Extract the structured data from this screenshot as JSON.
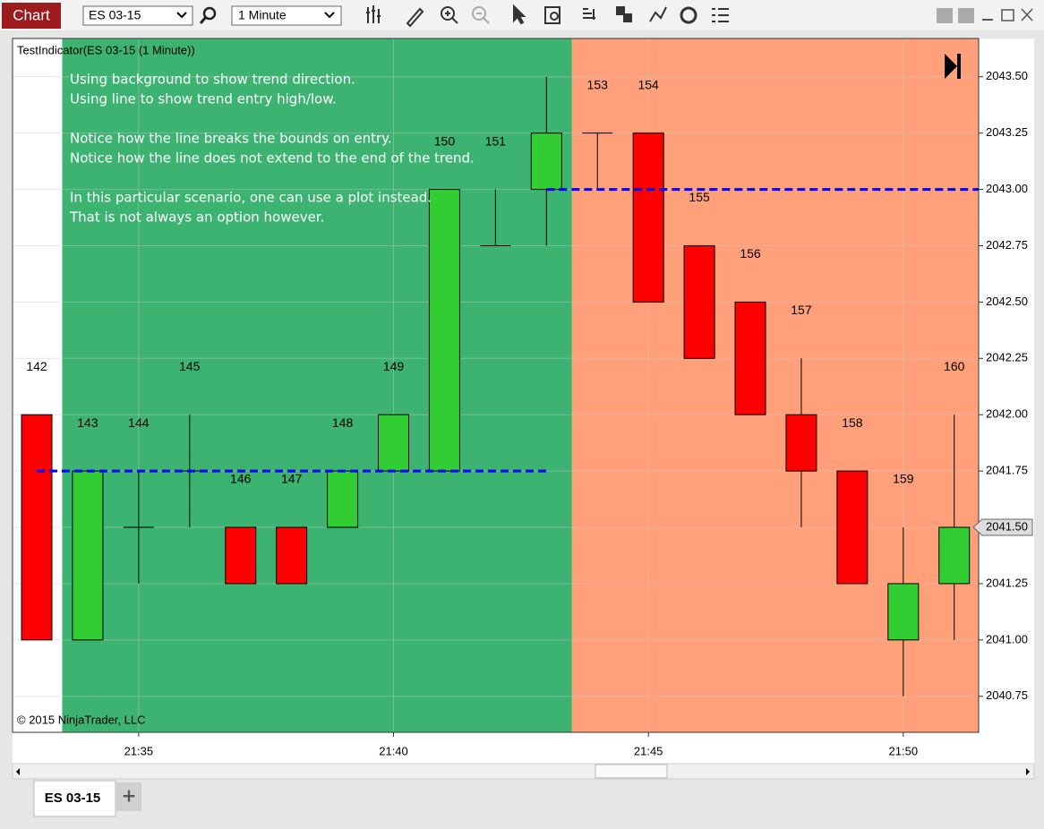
{
  "toolbar": {
    "app": "Chart",
    "instrument": "ES 03-15",
    "interval": "1 Minute"
  },
  "tabs": {
    "active": "ES 03-15",
    "add": "+"
  },
  "chart_data": {
    "type": "candlestick",
    "title": "TestIndicator(ES 03-15 (1 Minute))",
    "annotations": [
      [
        "Using background to show trend direction.",
        "Using line to show trend entry high/low."
      ],
      [
        "Notice how the line breaks the bounds on entry.",
        "Notice how the line does not extend to the end of the trend."
      ],
      [
        "In this particular scenario, one can use a plot instead.",
        "That is not always an option however."
      ]
    ],
    "copyright": "© 2015 NinjaTrader, LLC",
    "categories": [
      null,
      null,
      "21:35",
      null,
      null,
      null,
      null,
      "21:40",
      null,
      null,
      null,
      null,
      "21:45",
      null,
      null,
      null,
      null,
      "21:50",
      null
    ],
    "bar_numbers": [
      142,
      143,
      144,
      145,
      146,
      147,
      148,
      149,
      150,
      151,
      null,
      153,
      154,
      155,
      156,
      157,
      158,
      159,
      160
    ],
    "open": [
      2042.0,
      2041.0,
      2041.5,
      2041.75,
      2041.5,
      2041.5,
      2041.5,
      2041.75,
      2041.75,
      2042.75,
      2043.0,
      2043.25,
      2043.25,
      2042.75,
      2042.5,
      2042.0,
      2041.75,
      2041.0,
      2041.25
    ],
    "high": [
      2042.0,
      2041.75,
      2041.75,
      2042.0,
      2041.5,
      2041.5,
      2041.75,
      2042.0,
      2043.0,
      2043.0,
      2043.5,
      2043.25,
      2043.25,
      2042.75,
      2042.5,
      2042.25,
      2041.75,
      2041.5,
      2042.0
    ],
    "low": [
      2041.0,
      2041.0,
      2041.25,
      2041.5,
      2041.25,
      2041.25,
      2041.5,
      2041.75,
      2041.75,
      2042.75,
      2042.75,
      2043.0,
      2042.5,
      2042.25,
      2042.0,
      2041.5,
      2041.25,
      2040.75,
      2041.0
    ],
    "close": [
      2041.0,
      2041.75,
      2041.5,
      2041.75,
      2041.25,
      2041.25,
      2041.75,
      2042.0,
      2043.0,
      2042.75,
      2043.25,
      2043.25,
      2042.5,
      2042.25,
      2042.0,
      2041.75,
      2041.25,
      2041.25,
      2041.5
    ],
    "up_color": "#32cd32",
    "down_color": "#ff0000",
    "ylim": [
      2040.59,
      2043.67
    ],
    "yticks": [
      {
        "value": 2040.75,
        "label": "2040.75"
      },
      {
        "value": 2041.0,
        "label": "2041.00"
      },
      {
        "value": 2041.25,
        "label": "2041.25"
      },
      {
        "value": 2041.5,
        "label": "2041.50"
      },
      {
        "value": 2041.75,
        "label": "2041.75"
      },
      {
        "value": 2042.0,
        "label": "2042.00"
      },
      {
        "value": 2042.25,
        "label": "2042.25"
      },
      {
        "value": 2042.5,
        "label": "2042.50"
      },
      {
        "value": 2042.75,
        "label": "2042.75"
      },
      {
        "value": 2043.0,
        "label": "2043.00"
      },
      {
        "value": 2043.25,
        "label": "2043.25"
      },
      {
        "value": 2043.5,
        "label": "2043.50"
      }
    ],
    "grid": true,
    "trend_regions": [
      {
        "color": "#3cb371",
        "start": 1,
        "end": 10
      },
      {
        "color": "#ffa07a",
        "start": 11,
        "end": 18
      }
    ],
    "trend_lines": [
      {
        "value": 2041.75,
        "color": "#0000ff",
        "start": 0,
        "end": 10,
        "extends_right": false
      },
      {
        "value": 2043.0,
        "color": "#0000ff",
        "start": 10,
        "end": 18,
        "extends_right": true
      }
    ],
    "last_price": {
      "value": 2041.5,
      "label": "2041.50"
    }
  }
}
